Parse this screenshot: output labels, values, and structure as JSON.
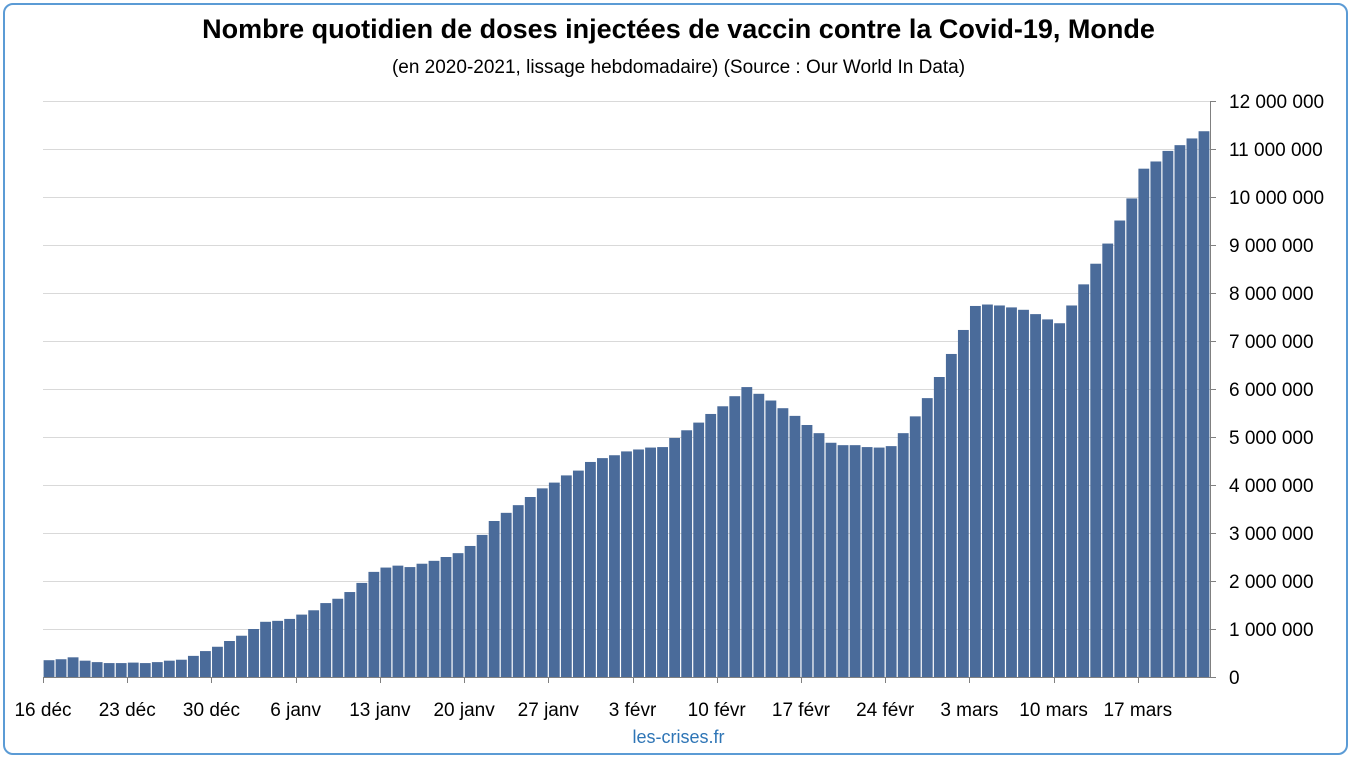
{
  "title": "Nombre quotidien de doses injectées de vaccin contre la Covid-19, Monde",
  "subtitle": "(en 2020-2021, lissage hebdomadaire) (Source : Our World In Data)",
  "credit": "les-crises.fr",
  "colors": {
    "bar": "#4a6b9a",
    "grid": "#d9d9d9",
    "frame": "#5b9bd5",
    "credit": "#2e75b6"
  },
  "chart_data": {
    "type": "bar",
    "title": "Nombre quotidien de doses injectées de vaccin contre la Covid-19, Monde",
    "subtitle": "(en 2020-2021, lissage hebdomadaire) (Source : Our World In Data)",
    "xlabel": "",
    "ylabel": "",
    "ylim": [
      0,
      12000000
    ],
    "y_axis_position": "right",
    "grid": true,
    "legend": "none",
    "ytick_values": [
      0,
      1000000,
      2000000,
      3000000,
      4000000,
      5000000,
      6000000,
      7000000,
      8000000,
      9000000,
      10000000,
      11000000,
      12000000
    ],
    "ytick_labels": [
      "0",
      "1 000 000",
      "2 000 000",
      "3 000 000",
      "4 000 000",
      "5 000 000",
      "6 000 000",
      "7 000 000",
      "8 000 000",
      "9 000 000",
      "10 000 000",
      "11 000 000",
      "12 000 000"
    ],
    "xtick_labels": [
      "16 déc",
      "23 déc",
      "30 déc",
      "6 janv",
      "13 janv",
      "20 janv",
      "27 janv",
      "3 févr",
      "10 févr",
      "17 févr",
      "24 févr",
      "3 mars",
      "10 mars",
      "17 mars"
    ],
    "xtick_every": 7,
    "values": [
      350000,
      370000,
      410000,
      340000,
      310000,
      290000,
      290000,
      300000,
      290000,
      310000,
      340000,
      360000,
      440000,
      540000,
      630000,
      750000,
      860000,
      1000000,
      1150000,
      1170000,
      1210000,
      1300000,
      1390000,
      1540000,
      1630000,
      1770000,
      1960000,
      2190000,
      2280000,
      2320000,
      2290000,
      2360000,
      2420000,
      2500000,
      2580000,
      2730000,
      2960000,
      3250000,
      3420000,
      3580000,
      3750000,
      3930000,
      4050000,
      4200000,
      4300000,
      4480000,
      4560000,
      4620000,
      4700000,
      4740000,
      4780000,
      4790000,
      4980000,
      5140000,
      5300000,
      5480000,
      5640000,
      5850000,
      6040000,
      5900000,
      5760000,
      5600000,
      5440000,
      5250000,
      5080000,
      4880000,
      4830000,
      4830000,
      4790000,
      4780000,
      4810000,
      5080000,
      5430000,
      5810000,
      6250000,
      6730000,
      7230000,
      7730000,
      7760000,
      7740000,
      7700000,
      7650000,
      7560000,
      7450000,
      7370000,
      7740000,
      8180000,
      8610000,
      9030000,
      9510000,
      9970000,
      10590000,
      10740000,
      10960000,
      11080000,
      11220000,
      11370000
    ]
  }
}
